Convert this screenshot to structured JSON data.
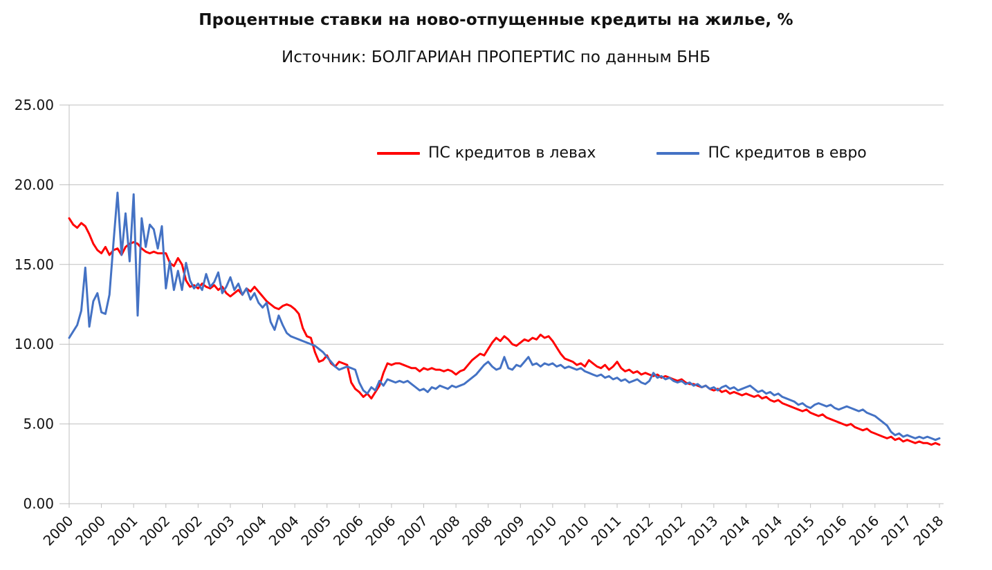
{
  "chart_data": {
    "type": "line",
    "title": "Процентные ставки на ново-отпущенные кредиты на жилье, %",
    "subtitle": "Источник: БОЛГАРИАН ПРОПЕРТИС по данным БНБ",
    "ylim": [
      0,
      25
    ],
    "yticks": [
      0,
      5,
      10,
      15,
      20,
      25
    ],
    "ytick_format_decimals": 2,
    "grid": true,
    "grid_color": "#BFBFBF",
    "legend_position": "top-inside",
    "x_start": "2000-01",
    "x_interval": "monthly",
    "xtick_every_months": 8,
    "xtick_labels": [
      "2000",
      "2000",
      "2001",
      "2002",
      "2002",
      "2003",
      "2004",
      "2004",
      "2005",
      "2006",
      "2006",
      "2007",
      "2008",
      "2008",
      "2009",
      "2010",
      "2010",
      "2011",
      "2012",
      "2012",
      "2013",
      "2014",
      "2014",
      "2015",
      "2016",
      "2016",
      "2017",
      "2018"
    ],
    "series": [
      {
        "name": "ПС кредитов в левах",
        "color": "#FF0000",
        "values": [
          17.9,
          17.5,
          17.3,
          17.6,
          17.4,
          16.9,
          16.3,
          15.9,
          15.7,
          16.1,
          15.6,
          15.9,
          16.0,
          15.6,
          16.1,
          16.3,
          16.4,
          16.3,
          16.0,
          15.8,
          15.7,
          15.8,
          15.7,
          15.7,
          15.7,
          15.1,
          14.9,
          15.4,
          15.0,
          14.0,
          13.6,
          13.7,
          13.5,
          13.8,
          13.6,
          13.5,
          13.7,
          13.4,
          13.6,
          13.2,
          13.0,
          13.2,
          13.4,
          13.1,
          13.5,
          13.3,
          13.6,
          13.3,
          13.0,
          12.7,
          12.5,
          12.3,
          12.2,
          12.4,
          12.5,
          12.4,
          12.2,
          11.9,
          11.0,
          10.5,
          10.4,
          9.5,
          8.9,
          9.0,
          9.3,
          8.8,
          8.6,
          8.9,
          8.8,
          8.7,
          7.6,
          7.2,
          7.0,
          6.7,
          6.9,
          6.6,
          7.0,
          7.4,
          8.2,
          8.8,
          8.7,
          8.8,
          8.8,
          8.7,
          8.6,
          8.5,
          8.5,
          8.3,
          8.5,
          8.4,
          8.5,
          8.4,
          8.4,
          8.3,
          8.4,
          8.3,
          8.1,
          8.3,
          8.4,
          8.7,
          9.0,
          9.2,
          9.4,
          9.3,
          9.7,
          10.1,
          10.4,
          10.2,
          10.5,
          10.3,
          10.0,
          9.9,
          10.1,
          10.3,
          10.2,
          10.4,
          10.3,
          10.6,
          10.4,
          10.5,
          10.2,
          9.8,
          9.4,
          9.1,
          9.0,
          8.9,
          8.7,
          8.8,
          8.6,
          9.0,
          8.8,
          8.6,
          8.5,
          8.7,
          8.4,
          8.6,
          8.9,
          8.5,
          8.3,
          8.4,
          8.2,
          8.3,
          8.1,
          8.2,
          8.1,
          8.0,
          8.1,
          7.9,
          8.0,
          7.9,
          7.8,
          7.7,
          7.8,
          7.6,
          7.5,
          7.5,
          7.4,
          7.3,
          7.4,
          7.2,
          7.1,
          7.2,
          7.0,
          7.1,
          6.9,
          7.0,
          6.9,
          6.8,
          6.9,
          6.8,
          6.7,
          6.8,
          6.6,
          6.7,
          6.5,
          6.4,
          6.5,
          6.3,
          6.2,
          6.1,
          6.0,
          5.9,
          5.8,
          5.9,
          5.7,
          5.6,
          5.5,
          5.6,
          5.4,
          5.3,
          5.2,
          5.1,
          5.0,
          4.9,
          5.0,
          4.8,
          4.7,
          4.6,
          4.7,
          4.5,
          4.4,
          4.3,
          4.2,
          4.1,
          4.2,
          4.0,
          4.1,
          3.9,
          4.0,
          3.9,
          3.8,
          3.9,
          3.8,
          3.8,
          3.7,
          3.8,
          3.7
        ]
      },
      {
        "name": "ПС кредитов в евро",
        "color": "#4472C4",
        "values": [
          10.4,
          10.8,
          11.2,
          12.1,
          14.8,
          11.1,
          12.7,
          13.2,
          12.0,
          11.9,
          13.1,
          16.4,
          19.5,
          15.6,
          18.2,
          15.2,
          19.4,
          11.8,
          17.9,
          16.1,
          17.5,
          17.2,
          16.0,
          17.4,
          13.5,
          15.2,
          13.4,
          14.6,
          13.4,
          15.1,
          14.0,
          13.5,
          13.8,
          13.4,
          14.4,
          13.6,
          13.9,
          14.5,
          13.2,
          13.6,
          14.2,
          13.4,
          13.8,
          13.1,
          13.5,
          12.8,
          13.2,
          12.6,
          12.3,
          12.6,
          11.4,
          10.9,
          11.8,
          11.2,
          10.7,
          10.5,
          10.4,
          10.3,
          10.2,
          10.1,
          10.0,
          9.9,
          9.7,
          9.5,
          9.2,
          8.9,
          8.6,
          8.4,
          8.5,
          8.6,
          8.5,
          8.4,
          7.6,
          7.1,
          6.9,
          7.3,
          7.1,
          7.7,
          7.4,
          7.8,
          7.7,
          7.6,
          7.7,
          7.6,
          7.7,
          7.5,
          7.3,
          7.1,
          7.2,
          7.0,
          7.3,
          7.2,
          7.4,
          7.3,
          7.2,
          7.4,
          7.3,
          7.4,
          7.5,
          7.7,
          7.9,
          8.1,
          8.4,
          8.7,
          8.9,
          8.6,
          8.4,
          8.5,
          9.2,
          8.5,
          8.4,
          8.7,
          8.6,
          8.9,
          9.2,
          8.7,
          8.8,
          8.6,
          8.8,
          8.7,
          8.8,
          8.6,
          8.7,
          8.5,
          8.6,
          8.5,
          8.4,
          8.5,
          8.3,
          8.2,
          8.1,
          8.0,
          8.1,
          7.9,
          8.0,
          7.8,
          7.9,
          7.7,
          7.8,
          7.6,
          7.7,
          7.8,
          7.6,
          7.5,
          7.7,
          8.2,
          7.9,
          8.0,
          7.8,
          7.9,
          7.7,
          7.6,
          7.7,
          7.5,
          7.6,
          7.4,
          7.5,
          7.3,
          7.4,
          7.2,
          7.3,
          7.1,
          7.3,
          7.4,
          7.2,
          7.3,
          7.1,
          7.2,
          7.3,
          7.4,
          7.2,
          7.0,
          7.1,
          6.9,
          7.0,
          6.8,
          6.9,
          6.7,
          6.6,
          6.5,
          6.4,
          6.2,
          6.3,
          6.1,
          6.0,
          6.2,
          6.3,
          6.2,
          6.1,
          6.2,
          6.0,
          5.9,
          6.0,
          6.1,
          6.0,
          5.9,
          5.8,
          5.9,
          5.7,
          5.6,
          5.5,
          5.3,
          5.1,
          4.9,
          4.5,
          4.3,
          4.4,
          4.2,
          4.3,
          4.2,
          4.1,
          4.2,
          4.1,
          4.2,
          4.1,
          4.0,
          4.1
        ]
      }
    ]
  }
}
